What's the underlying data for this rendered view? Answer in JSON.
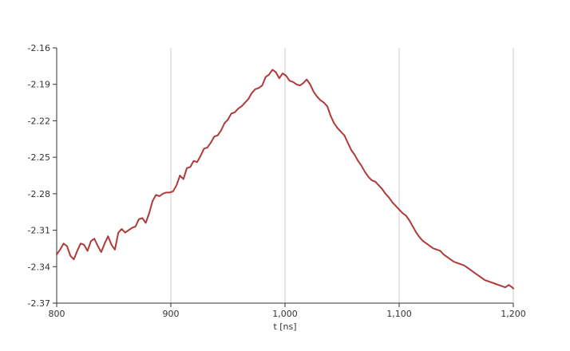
{
  "chart_data": {
    "type": "line",
    "title": "",
    "xlabel": "t [ns]",
    "ylabel": "",
    "xlim": [
      800,
      1200
    ],
    "ylim": [
      -2.37,
      -2.16
    ],
    "x_ticks": [
      800,
      900,
      1000,
      1100,
      1200
    ],
    "x_tick_labels": [
      "800",
      "900",
      "1,000",
      "1,100",
      "1,200"
    ],
    "y_ticks": [
      -2.37,
      -2.34,
      -2.31,
      -2.28,
      -2.25,
      -2.22,
      -2.19,
      -2.16
    ],
    "y_tick_labels": [
      "-2.37",
      "-2.34",
      "-2.31",
      "-2.28",
      "-2.25",
      "-2.22",
      "-2.19",
      "-2.16"
    ],
    "grid": {
      "vertical": true,
      "horizontal": false
    },
    "legend": "none",
    "series": [
      {
        "color": "#b03a3a",
        "x": [
          800,
          803,
          806,
          809,
          812,
          815,
          818,
          821,
          824,
          827,
          830,
          833,
          836,
          839,
          842,
          845,
          848,
          851,
          854,
          857,
          860,
          863,
          866,
          869,
          872,
          875,
          878,
          881,
          884,
          887,
          890,
          893,
          896,
          899,
          902,
          905,
          908,
          911,
          914,
          917,
          920,
          923,
          926,
          929,
          932,
          935,
          938,
          941,
          944,
          947,
          950,
          953,
          956,
          959,
          962,
          965,
          968,
          971,
          974,
          977,
          980,
          983,
          986,
          989,
          992,
          995,
          998,
          1001,
          1004,
          1007,
          1010,
          1013,
          1016,
          1019,
          1022,
          1025,
          1028,
          1031,
          1034,
          1037,
          1040,
          1043,
          1046,
          1049,
          1052,
          1055,
          1058,
          1061,
          1064,
          1067,
          1070,
          1073,
          1076,
          1079,
          1082,
          1085,
          1088,
          1091,
          1094,
          1097,
          1100,
          1103,
          1106,
          1109,
          1112,
          1115,
          1118,
          1121,
          1124,
          1127,
          1130,
          1133,
          1136,
          1139,
          1142,
          1145,
          1148,
          1151,
          1154,
          1157,
          1160,
          1163,
          1166,
          1169,
          1172,
          1175,
          1178,
          1181,
          1184,
          1187,
          1190,
          1193,
          1196,
          1199,
          1200
        ],
        "y": [
          -2.33,
          -2.326,
          -2.321,
          -2.323,
          -2.331,
          -2.334,
          -2.327,
          -2.321,
          -2.322,
          -2.327,
          -2.319,
          -2.317,
          -2.323,
          -2.328,
          -2.321,
          -2.315,
          -2.322,
          -2.326,
          -2.312,
          -2.309,
          -2.312,
          -2.31,
          -2.308,
          -2.307,
          -2.301,
          -2.3,
          -2.304,
          -2.296,
          -2.286,
          -2.281,
          -2.282,
          -2.28,
          -2.279,
          -2.279,
          -2.278,
          -2.273,
          -2.265,
          -2.268,
          -2.259,
          -2.258,
          -2.253,
          -2.254,
          -2.249,
          -2.243,
          -2.242,
          -2.238,
          -2.233,
          -2.232,
          -2.228,
          -2.222,
          -2.219,
          -2.214,
          -2.213,
          -2.21,
          -2.208,
          -2.205,
          -2.202,
          -2.197,
          -2.194,
          -2.193,
          -2.191,
          -2.184,
          -2.182,
          -2.178,
          -2.18,
          -2.185,
          -2.181,
          -2.183,
          -2.187,
          -2.188,
          -2.19,
          -2.191,
          -2.189,
          -2.186,
          -2.19,
          -2.196,
          -2.2,
          -2.203,
          -2.205,
          -2.208,
          -2.216,
          -2.222,
          -2.226,
          -2.229,
          -2.232,
          -2.238,
          -2.244,
          -2.248,
          -2.253,
          -2.257,
          -2.262,
          -2.266,
          -2.269,
          -2.27,
          -2.273,
          -2.276,
          -2.28,
          -2.283,
          -2.287,
          -2.29,
          -2.293,
          -2.296,
          -2.298,
          -2.302,
          -2.307,
          -2.312,
          -2.316,
          -2.319,
          -2.321,
          -2.323,
          -2.325,
          -2.326,
          -2.327,
          -2.33,
          -2.332,
          -2.334,
          -2.336,
          -2.337,
          -2.338,
          -2.339,
          -2.341,
          -2.343,
          -2.345,
          -2.347,
          -2.349,
          -2.351,
          -2.352,
          -2.353,
          -2.354,
          -2.355,
          -2.356,
          -2.357,
          -2.355,
          -2.357,
          -2.358
        ]
      }
    ]
  }
}
